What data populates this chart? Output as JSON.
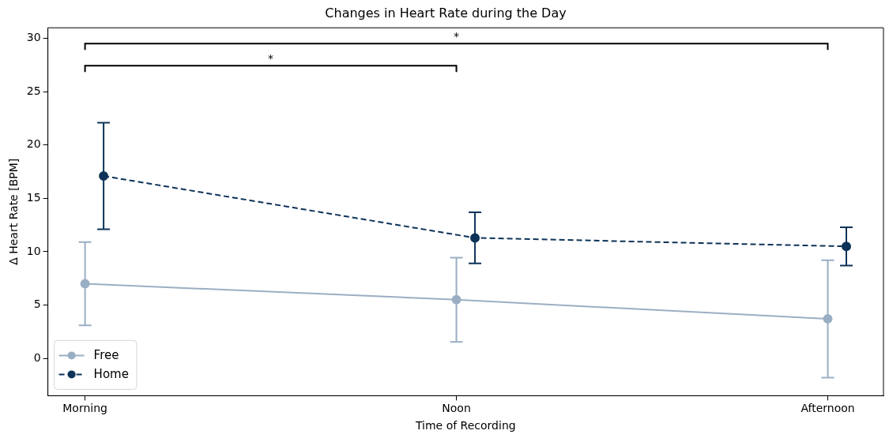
{
  "chart_data": {
    "type": "line",
    "title": "Changes in Heart Rate during the Day",
    "xlabel": "Time of Recording",
    "ylabel": "Δ Heart Rate [BPM]",
    "series": [
      {
        "name": "Free",
        "color": "#9aafc3",
        "values": [
          7.0,
          5.5,
          3.7
        ],
        "errors": [
          3.9,
          3.95,
          5.5
        ],
        "line_style": "solid"
      },
      {
        "name": "Home",
        "color": "#0d3358",
        "values": [
          17.1,
          11.3,
          10.5
        ],
        "errors": [
          5.0,
          2.4,
          1.8
        ],
        "line_style": "dashed"
      }
    ],
    "categories": [
      "Morning",
      "Noon",
      "Afternoon"
    ],
    "ylim": [
      -3.5,
      31
    ],
    "yticks": [
      0,
      5,
      10,
      15,
      20,
      25,
      30
    ],
    "annotations": [
      "*",
      "*"
    ],
    "marker": "circle",
    "grid": false,
    "legend": "bottom left"
  }
}
